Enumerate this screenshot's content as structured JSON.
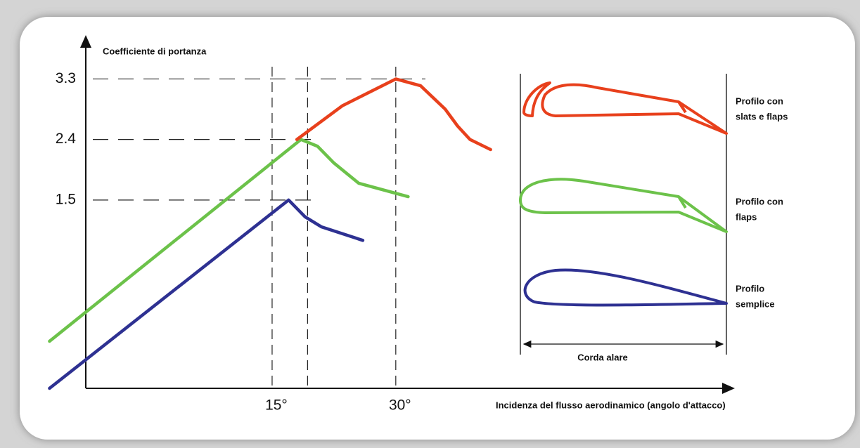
{
  "chart_data": {
    "type": "line",
    "y_label": "Coefficiente di portanza",
    "x_label": "Incidenza del flusso aerodinamico (angolo d'attacco)",
    "xlim": [
      -7.6,
      70.7
    ],
    "ylim": [
      -1.3,
      3.9
    ],
    "yticks": [
      1.5,
      2.4,
      3.3
    ],
    "xticks": [
      {
        "value": 15,
        "label": "15°"
      },
      {
        "value": 19.3,
        "label": null
      },
      {
        "value": 30,
        "label": "30°"
      }
    ],
    "series": [
      {
        "name": "Profilo semplice",
        "color": "#2e3192",
        "x": [
          -12,
          17,
          19,
          21,
          26
        ],
        "values": [
          -1.3,
          1.5,
          1.25,
          1.1,
          0.9
        ]
      },
      {
        "name": "Profilo con flaps",
        "color": "#6cc24a",
        "x": [
          -12,
          18.5,
          20.5,
          22.5,
          25.5,
          31.5
        ],
        "values": [
          -0.6,
          2.4,
          2.3,
          2.05,
          1.75,
          1.55
        ]
      },
      {
        "name": "Profilo con slats e flaps",
        "color": "#e8401c",
        "x": [
          18,
          23.5,
          30,
          33,
          36,
          37.5,
          39,
          41.5
        ],
        "values": [
          2.4,
          2.9,
          3.3,
          3.2,
          2.85,
          2.6,
          2.4,
          2.25
        ]
      }
    ],
    "profiles": [
      {
        "label_lines": [
          "Profilo con",
          "slats e flaps"
        ],
        "color": "#e8401c"
      },
      {
        "label_lines": [
          "Profilo con",
          "flaps"
        ],
        "color": "#6cc24a"
      },
      {
        "label_lines": [
          "Profilo",
          "semplice"
        ],
        "color": "#2e3192"
      }
    ],
    "chord_label": "Corda alare"
  }
}
